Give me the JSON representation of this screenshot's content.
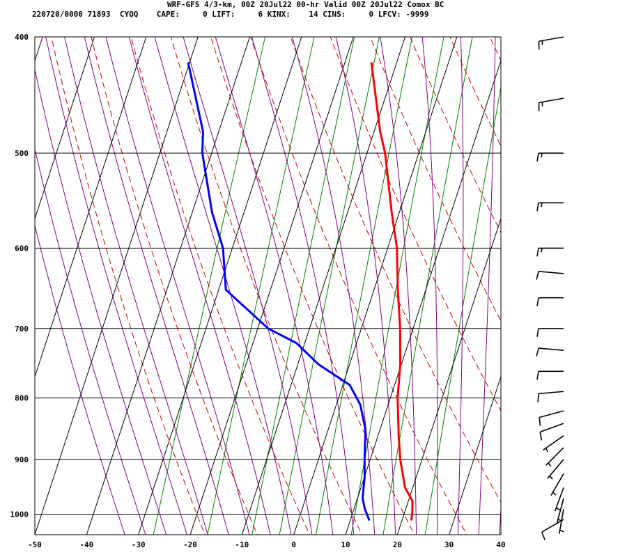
{
  "header": {
    "title": "WRF-GFS 4/3-km, 00Z 20Jul22 00-hr Valid 00Z 20Jul22 Comox BC",
    "info": "220720/0000 71893  CYQQ    CAPE:     0 LIFT:     6 KINX:    14 CINS:     0 LFCV: -9999"
  },
  "colors": {
    "temperature": "#ff0000",
    "dewpoint": "#0000ff",
    "isotherm_grid": "#000000",
    "dry_adiabat": "#cc0000",
    "moist_adiabat": "#800080",
    "mixing_ratio": "#008000",
    "wind_barb": "#000000"
  },
  "chart_data": {
    "type": "line",
    "subtype": "skew-T log-P sounding",
    "xlabel": "",
    "ylabel": "",
    "xlim": [
      -50,
      40
    ],
    "ylim_hpa": [
      1040,
      400
    ],
    "y_scale": "log",
    "grid": true,
    "x_ticks": [
      -50,
      -40,
      -30,
      -20,
      -10,
      0,
      10,
      20,
      30,
      40
    ],
    "y_ticks": [
      400,
      500,
      600,
      700,
      800,
      900,
      1000
    ],
    "series": [
      {
        "key": "temperature",
        "points": [
          {
            "p": 1012,
            "t": 21.8
          },
          {
            "p": 997,
            "t": 21.5
          },
          {
            "p": 975,
            "t": 20.8
          },
          {
            "p": 950,
            "t": 18.5
          },
          {
            "p": 900,
            "t": 15.8
          },
          {
            "p": 860,
            "t": 14.0
          },
          {
            "p": 800,
            "t": 11.4
          },
          {
            "p": 750,
            "t": 9.8
          },
          {
            "p": 700,
            "t": 7.5
          },
          {
            "p": 650,
            "t": 4.6
          },
          {
            "p": 600,
            "t": 1.8
          },
          {
            "p": 560,
            "t": -1.5
          },
          {
            "p": 500,
            "t": -6.5
          },
          {
            "p": 480,
            "t": -8.8
          },
          {
            "p": 420,
            "t": -14.9
          }
        ]
      },
      {
        "key": "dewpoint",
        "points": [
          {
            "p": 1012,
            "t": 13.7
          },
          {
            "p": 990,
            "t": 12.1
          },
          {
            "p": 970,
            "t": 11.0
          },
          {
            "p": 930,
            "t": 10.0
          },
          {
            "p": 900,
            "t": 8.9
          },
          {
            "p": 850,
            "t": 7.2
          },
          {
            "p": 810,
            "t": 4.6
          },
          {
            "p": 780,
            "t": 1.3
          },
          {
            "p": 750,
            "t": -6.0
          },
          {
            "p": 720,
            "t": -11.6
          },
          {
            "p": 700,
            "t": -18.0
          },
          {
            "p": 650,
            "t": -28.6
          },
          {
            "p": 600,
            "t": -31.8
          },
          {
            "p": 560,
            "t": -36.2
          },
          {
            "p": 500,
            "t": -41.8
          },
          {
            "p": 480,
            "t": -43.0
          },
          {
            "p": 420,
            "t": -50.3
          }
        ]
      }
    ],
    "winds": [
      {
        "p": 1010,
        "direction_deg": 240,
        "speed_kt": 10
      },
      {
        "p": 990,
        "direction_deg": 190,
        "speed_kt": 5
      },
      {
        "p": 970,
        "direction_deg": 195,
        "speed_kt": 5
      },
      {
        "p": 950,
        "direction_deg": 200,
        "speed_kt": 5
      },
      {
        "p": 925,
        "direction_deg": 210,
        "speed_kt": 5
      },
      {
        "p": 900,
        "direction_deg": 220,
        "speed_kt": 5
      },
      {
        "p": 880,
        "direction_deg": 225,
        "speed_kt": 5
      },
      {
        "p": 860,
        "direction_deg": 235,
        "speed_kt": 5
      },
      {
        "p": 840,
        "direction_deg": 250,
        "speed_kt": 10
      },
      {
        "p": 820,
        "direction_deg": 255,
        "speed_kt": 10
      },
      {
        "p": 790,
        "direction_deg": 265,
        "speed_kt": 10
      },
      {
        "p": 760,
        "direction_deg": 270,
        "speed_kt": 10
      },
      {
        "p": 730,
        "direction_deg": 275,
        "speed_kt": 10
      },
      {
        "p": 700,
        "direction_deg": 270,
        "speed_kt": 10
      },
      {
        "p": 660,
        "direction_deg": 270,
        "speed_kt": 10
      },
      {
        "p": 630,
        "direction_deg": 275,
        "speed_kt": 10
      },
      {
        "p": 600,
        "direction_deg": 270,
        "speed_kt": 15
      },
      {
        "p": 550,
        "direction_deg": 270,
        "speed_kt": 15
      },
      {
        "p": 500,
        "direction_deg": 270,
        "speed_kt": 15
      },
      {
        "p": 450,
        "direction_deg": 260,
        "speed_kt": 15
      },
      {
        "p": 400,
        "direction_deg": 260,
        "speed_kt": 15
      }
    ]
  }
}
